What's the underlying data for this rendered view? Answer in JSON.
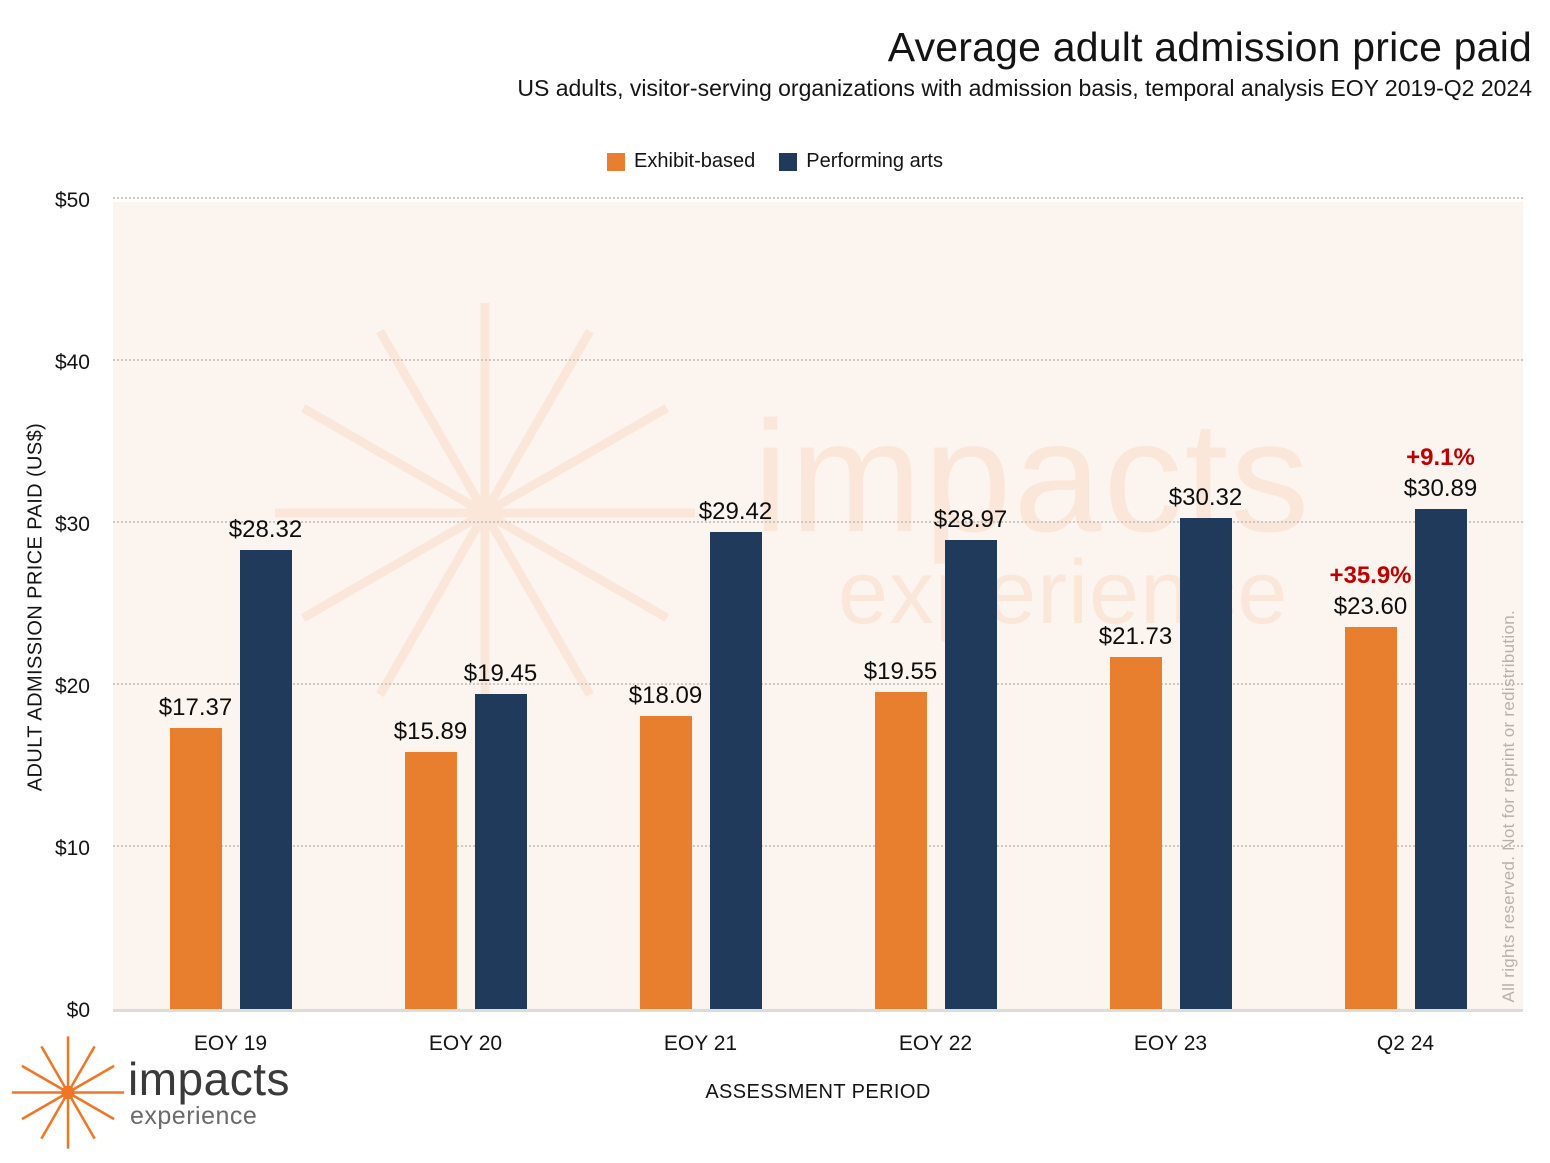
{
  "header": {
    "title": "Average adult admission price paid",
    "subtitle": "US adults, visitor-serving organizations with admission basis, temporal analysis EOY 2019-Q2 2024"
  },
  "chart_data": {
    "type": "bar",
    "title": "Average adult admission price paid",
    "subtitle": "US adults, visitor-serving organizations with admission basis, temporal analysis EOY 2019-Q2 2024",
    "categories": [
      "EOY 19",
      "EOY 20",
      "EOY 21",
      "EOY 22",
      "EOY 23",
      "Q2 24"
    ],
    "series": [
      {
        "name": "Exhibit-based",
        "color": "#E87F2F",
        "values": [
          17.37,
          15.89,
          18.09,
          19.55,
          21.73,
          23.6
        ],
        "labels": [
          "$17.37",
          "$15.89",
          "$18.09",
          "$19.55",
          "$21.73",
          "$23.60"
        ],
        "annotations": [
          "",
          "",
          "",
          "",
          "",
          "+35.9%"
        ]
      },
      {
        "name": "Performing arts",
        "color": "#203A5C",
        "values": [
          28.32,
          19.45,
          29.42,
          28.97,
          30.32,
          30.89
        ],
        "labels": [
          "$28.32",
          "$19.45",
          "$29.42",
          "$28.97",
          "$30.32",
          "$30.89"
        ],
        "annotations": [
          "",
          "",
          "",
          "",
          "",
          "+9.1%"
        ]
      }
    ],
    "xlabel": "ASSESSMENT PERIOD",
    "ylabel": "ADULT ADMISSION PRICE PAID (US$)",
    "ylim": [
      0,
      50
    ],
    "y_ticks": [
      "$0",
      "$10",
      "$20",
      "$30",
      "$40",
      "$50"
    ],
    "grid": "horizontal-dotted",
    "legend_position": "top-center",
    "annotation_color": "#C00000"
  },
  "watermark": {
    "word1": "impacts",
    "word2": "experience"
  },
  "copyright_notice": "All rights reserved.  Not for reprint or redistribution.",
  "footer_logo": {
    "name": "impacts",
    "tagline": "experience"
  },
  "colors": {
    "exhibit_based": "#E87F2F",
    "performing_arts": "#203A5C",
    "annotation_red": "#C00000",
    "plot_background": "#FCF5EF"
  }
}
